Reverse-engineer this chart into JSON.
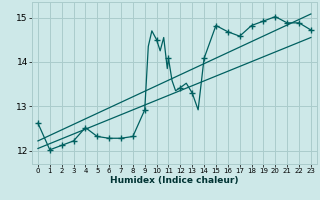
{
  "xlabel": "Humidex (Indice chaleur)",
  "xlim": [
    -0.5,
    23.5
  ],
  "ylim": [
    11.7,
    15.35
  ],
  "yticks": [
    12,
    13,
    14,
    15
  ],
  "xticks": [
    0,
    1,
    2,
    3,
    4,
    5,
    6,
    7,
    8,
    9,
    10,
    11,
    12,
    13,
    14,
    15,
    16,
    17,
    18,
    19,
    20,
    21,
    22,
    23
  ],
  "bg_color": "#cde8e8",
  "grid_color": "#aacccc",
  "line_color": "#006060",
  "main_x": [
    0,
    1,
    2,
    3,
    4,
    5,
    6,
    7,
    8,
    9,
    9.3,
    9.6,
    10,
    10.3,
    10.6,
    10.9,
    11,
    11.3,
    11.6,
    12,
    12.5,
    13,
    13.5,
    14,
    15,
    16,
    17,
    18,
    19,
    20,
    21,
    22,
    23
  ],
  "main_y": [
    12.62,
    12.02,
    12.12,
    12.22,
    12.52,
    12.32,
    12.28,
    12.28,
    12.32,
    12.92,
    14.35,
    14.7,
    14.5,
    14.25,
    14.55,
    13.85,
    14.08,
    13.58,
    13.35,
    13.42,
    13.52,
    13.3,
    12.92,
    14.08,
    14.82,
    14.68,
    14.58,
    14.82,
    14.92,
    15.02,
    14.88,
    14.88,
    14.72
  ],
  "marker_x": [
    0,
    1,
    2,
    3,
    4,
    5,
    6,
    7,
    8,
    9,
    10,
    11,
    12,
    13,
    14,
    15,
    16,
    17,
    18,
    19,
    20,
    21,
    22,
    23
  ],
  "marker_y": [
    12.62,
    12.02,
    12.12,
    12.22,
    12.52,
    12.32,
    12.28,
    12.28,
    12.32,
    12.92,
    14.5,
    14.08,
    13.42,
    13.3,
    14.08,
    14.82,
    14.68,
    14.58,
    14.82,
    14.92,
    15.02,
    14.88,
    14.88,
    14.72
  ],
  "line1_x": [
    0,
    23
  ],
  "line1_y": [
    12.05,
    14.55
  ],
  "line2_x": [
    0,
    23
  ],
  "line2_y": [
    12.22,
    15.08
  ]
}
